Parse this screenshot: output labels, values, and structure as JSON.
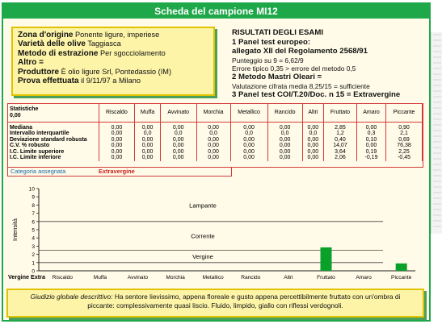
{
  "title": "Scheda del campione MI12",
  "info": {
    "rows": [
      {
        "label": "Zona d'origine",
        "value": "Ponente ligure, imperiese"
      },
      {
        "label": "Varietà delle olive",
        "value": "Taggiasca"
      },
      {
        "label": "Metodo di estrazione",
        "value": "Per sgocciolamento"
      },
      {
        "label": "Altro =",
        "value": ""
      },
      {
        "label": "Produttore",
        "value": "È olio ligure Srl, Pontedassio (IM)"
      },
      {
        "label": "Prova effettuata",
        "value": "il 9/11/97 a Milano"
      }
    ]
  },
  "results": {
    "heading": "RISULTATI DEGLI ESAMI",
    "lines": [
      {
        "text": "1 Panel test europeo:",
        "bold": true
      },
      {
        "text": "allegato XII del Regolamento 2568/91",
        "bold": true
      },
      {
        "text": "Punteggio su 9 = 6,62/9",
        "bold": false
      },
      {
        "text": "Errore tipico 0,35 > errore del metodo 0,5",
        "bold": false
      },
      {
        "text": "2 Metodo Mastri Oleari =",
        "bold": true
      },
      {
        "text": "Valutazione cifrata media 8,25/15 = sufficiente",
        "bold": false
      },
      {
        "text": "3 Panel test COI/T.20/Doc. n 15 = Extravergine",
        "bold": true
      }
    ]
  },
  "table": {
    "header_first": "Statistiche\n0,00",
    "columns": [
      "Riscaldo",
      "Muffa",
      "Avvinato",
      "Morchia",
      "Metallico",
      "Rancido",
      "Altri",
      "Fruttato",
      "Amaro",
      "Piccante"
    ],
    "rows": [
      {
        "label": "Mediana",
        "values": [
          "0,00",
          "0,00",
          "0,00",
          "0,00",
          "0,00",
          "0,00",
          "0,00",
          "2,85",
          "0,00",
          "0,90"
        ]
      },
      {
        "label": "Intervallo interquartile",
        "values": [
          "0,00",
          "0,0",
          "0,0",
          "0,0",
          "0,0",
          "0,0",
          "0,0",
          "1,2",
          "0,3",
          "2,1"
        ]
      },
      {
        "label": "Deviazione standard robusta",
        "values": [
          "0,00",
          "0,00",
          "0,00",
          "0,00",
          "0,00",
          "0,00",
          "0,00",
          "0,40",
          "0,10",
          "0,69"
        ]
      },
      {
        "label": "C.V. % robusto",
        "values": [
          "0,00",
          "0,00",
          "0,00",
          "0,00",
          "0,00",
          "0,00",
          "0,00",
          "14,07",
          "0,00",
          "76,38"
        ]
      },
      {
        "label": "I.C. Limite superiore",
        "values": [
          "0,00",
          "0,00",
          "0,00",
          "0,00",
          "0,00",
          "0,00",
          "0,00",
          "3,64",
          "0,19",
          "2,25"
        ]
      },
      {
        "label": "I.C. Limite inferiore",
        "values": [
          "0,00",
          "0,00",
          "0,00",
          "0,00",
          "0,00",
          "0,00",
          "0,00",
          "2,06",
          "-0,19",
          "-0,45"
        ]
      }
    ],
    "category_label": "Categoria assegnata",
    "category_value": "Extravergine"
  },
  "chart_data": {
    "type": "bar",
    "categories": [
      "Riscaldo",
      "Muffa",
      "Avvinato",
      "Morchia",
      "Metallico",
      "Rancido",
      "Altri",
      "Fruttato",
      "Amaro",
      "Piccante"
    ],
    "values": [
      0,
      0,
      0,
      0,
      0,
      0,
      0,
      2.85,
      0,
      0.9
    ],
    "ylabel": "Intensità",
    "ylim": [
      0,
      10
    ],
    "yticks": [
      "0",
      "1",
      "2",
      "3",
      "4",
      "5",
      "6",
      "7",
      "8",
      "9",
      "10"
    ],
    "bands": [
      {
        "label": "Lampante",
        "from": 6,
        "to": 10
      },
      {
        "label": "Corrente",
        "from": 2.5,
        "to": 6
      },
      {
        "label": "Vergine",
        "from": 1,
        "to": 2.5
      }
    ],
    "bottom_band_label": "Vergine Extra",
    "bar_color": "#0aa02a",
    "grid": false
  },
  "verdict": {
    "label": "Giudizio globale descrittivo:",
    "text": "Ha sentore lievissimo, appena floreale e gusto appena percettibilmente fruttato con un'ombra di piccante: complessivamente quasi liscio. Fluido, limpido, giallo con riflessi verdognoli."
  },
  "colors": {
    "accent": "#1fa84a",
    "highlight": "#fdf4a8",
    "table_border": "#d23a3a",
    "background": "#fffbe8"
  }
}
